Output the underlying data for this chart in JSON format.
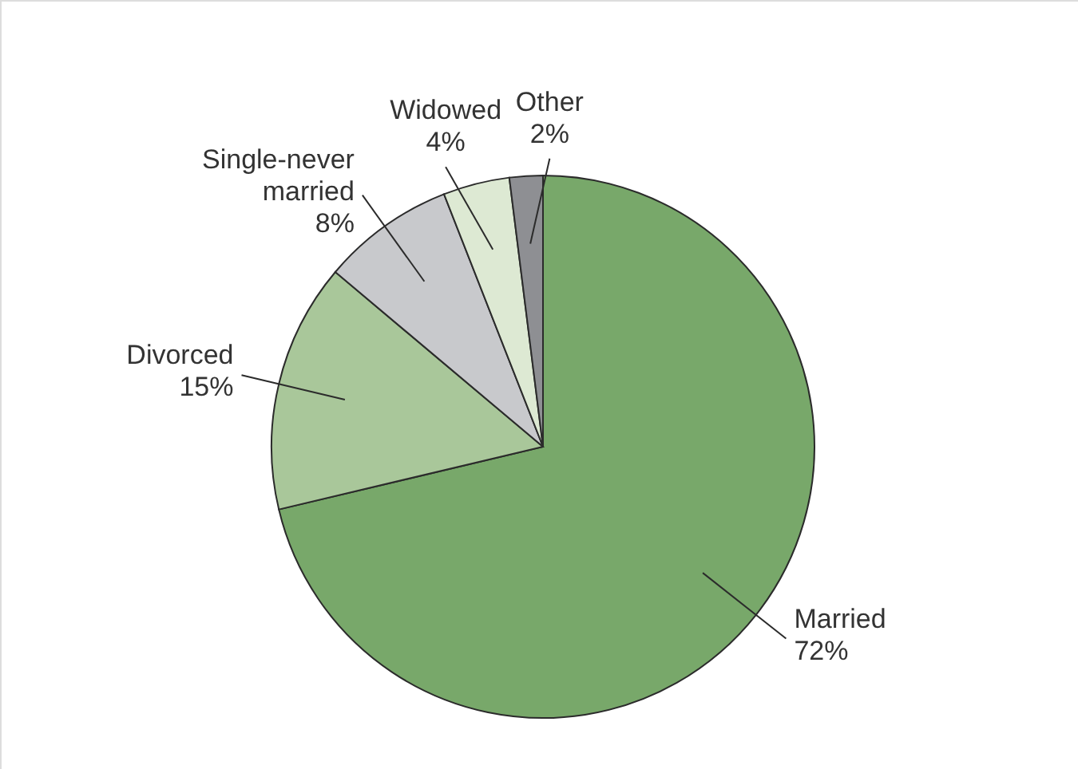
{
  "chart_data": {
    "type": "pie",
    "categories": [
      "Married",
      "Divorced",
      "Single-never married",
      "Widowed",
      "Other"
    ],
    "values": [
      72,
      15,
      8,
      4,
      2
    ],
    "value_labels": [
      "72%",
      "15%",
      "8%",
      "4%",
      "2%"
    ],
    "colors": [
      "#78a86a",
      "#a9c79a",
      "#c8c9cc",
      "#dde9d3",
      "#8e8f93"
    ]
  }
}
